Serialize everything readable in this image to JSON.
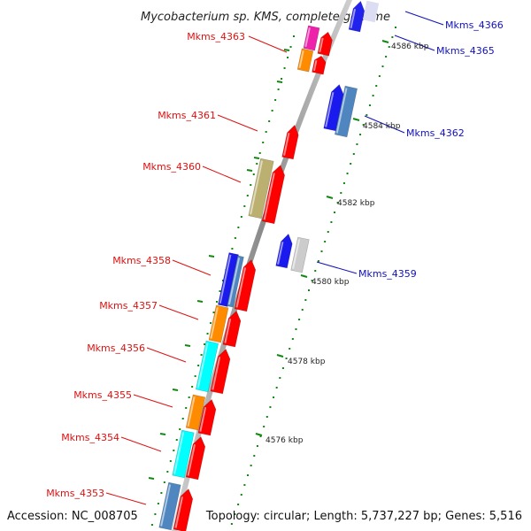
{
  "title": "Mycobacterium sp. KMS, complete genome",
  "accession_text": "Accession: NC_008705",
  "topology_text": "Topology: circular; Length: 5,737,227 bp; Genes: 5,516",
  "colors": {
    "forward_gene": "#ff0000",
    "left_label": "#dd1111",
    "right_label": "#1111bb",
    "backbone": "#999999",
    "tick": "#118811"
  },
  "ruler_ticks": [
    {
      "label": "4586 kbp"
    },
    {
      "label": "4584 kbp"
    },
    {
      "label": "4582 kbp"
    },
    {
      "label": "4580 kbp"
    },
    {
      "label": "4578 kbp"
    },
    {
      "label": "4576 kbp"
    }
  ],
  "left_labels": [
    {
      "text": "Mkms_4363"
    },
    {
      "text": "Mkms_4361"
    },
    {
      "text": "Mkms_4360"
    },
    {
      "text": "Mkms_4358"
    },
    {
      "text": "Mkms_4357"
    },
    {
      "text": "Mkms_4356"
    },
    {
      "text": "Mkms_4355"
    },
    {
      "text": "Mkms_4354"
    },
    {
      "text": "Mkms_4353"
    }
  ],
  "right_labels": [
    {
      "text": "Mkms_4366"
    },
    {
      "text": "Mkms_4365"
    },
    {
      "text": "Mkms_4362"
    },
    {
      "text": "Mkms_4359"
    }
  ]
}
